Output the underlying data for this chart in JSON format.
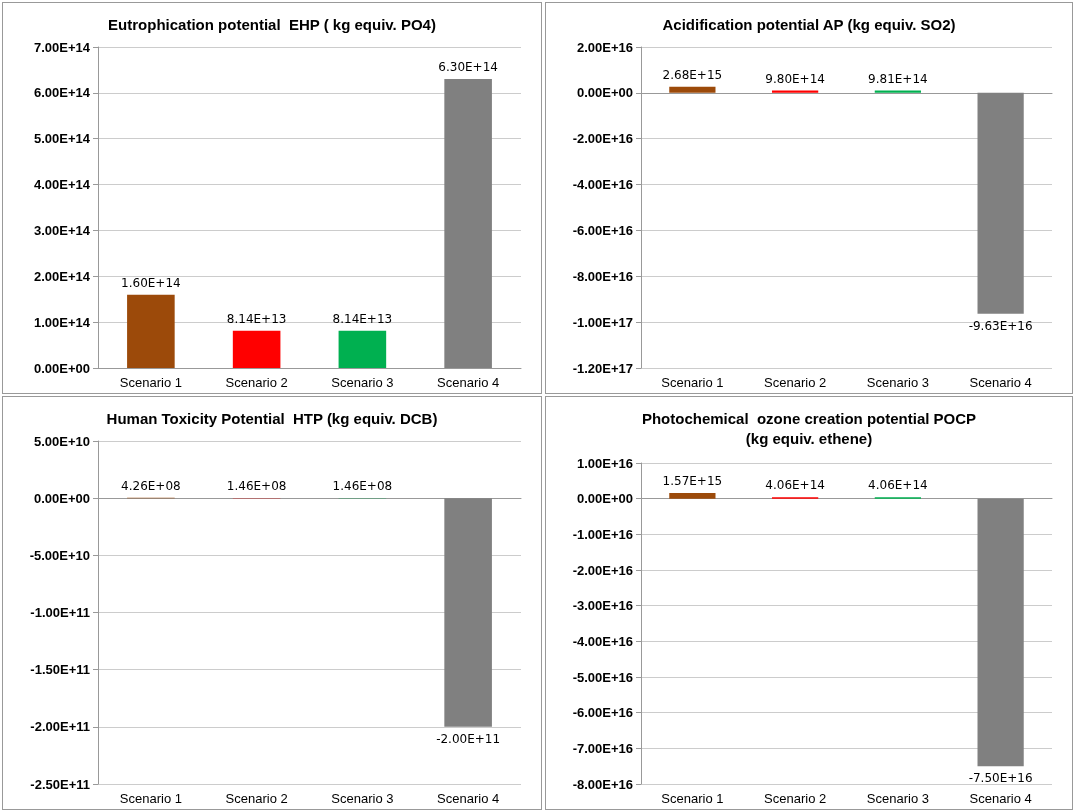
{
  "chart_data": [
    {
      "type": "bar",
      "title": "Eutrophication potential  EHP ( kg equiv. PO4)",
      "categories": [
        "Scenario 1",
        "Scenario 2",
        "Scenario 3",
        "Scenario 4"
      ],
      "values": [
        160000000000000.0,
        81400000000000.0,
        81400000000000.0,
        630000000000000.0
      ],
      "colors": [
        "#9c4a0a",
        "#ff0000",
        "#00b050",
        "#808080"
      ],
      "value_labels": [
        "1.60E+14",
        "8.14E+13",
        "8.14E+13",
        "6.30E+14"
      ],
      "ylim": [
        0,
        700000000000000.0
      ],
      "yticks": [
        {
          "value": 0,
          "label": "0.00E+00"
        },
        {
          "value": 100000000000000.0,
          "label": "1.00E+14"
        },
        {
          "value": 200000000000000.0,
          "label": "2.00E+14"
        },
        {
          "value": 300000000000000.0,
          "label": "3.00E+14"
        },
        {
          "value": 400000000000000.0,
          "label": "4.00E+14"
        },
        {
          "value": 500000000000000.0,
          "label": "5.00E+14"
        },
        {
          "value": 600000000000000.0,
          "label": "6.00E+14"
        },
        {
          "value": 700000000000000.0,
          "label": "7.00E+14"
        }
      ],
      "grid": "y"
    },
    {
      "type": "bar",
      "title": "Acidification potential AP (kg equiv. SO2)",
      "categories": [
        "Scenario 1",
        "Scenario 2",
        "Scenario 3",
        "Scenario 4"
      ],
      "values": [
        2680000000000000.0,
        980000000000000.0,
        981000000000000.0,
        -9.63e+16
      ],
      "colors": [
        "#9c4a0a",
        "#ff0000",
        "#00b050",
        "#808080"
      ],
      "value_labels": [
        "2.68E+15",
        "9.80E+14",
        "9.81E+14",
        "-9.63E+16"
      ],
      "ylim": [
        -1.2e+17,
        2e+16
      ],
      "yticks": [
        {
          "value": -1.2e+17,
          "label": "-1.20E+17"
        },
        {
          "value": -1e+17,
          "label": "-1.00E+17"
        },
        {
          "value": -8e+16,
          "label": "-8.00E+16"
        },
        {
          "value": -6e+16,
          "label": "-6.00E+16"
        },
        {
          "value": -4e+16,
          "label": "-4.00E+16"
        },
        {
          "value": -2e+16,
          "label": "-2.00E+16"
        },
        {
          "value": 0,
          "label": "0.00E+00"
        },
        {
          "value": 2e+16,
          "label": "2.00E+16"
        }
      ],
      "grid": "y"
    },
    {
      "type": "bar",
      "title": "Human Toxicity Potential  HTP (kg equiv. DCB)",
      "categories": [
        "Scenario 1",
        "Scenario 2",
        "Scenario 3",
        "Scenario 4"
      ],
      "values": [
        426000000.0,
        146000000.0,
        146000000.0,
        -200000000000.0
      ],
      "colors": [
        "#9c4a0a",
        "#ff0000",
        "#00b050",
        "#808080"
      ],
      "value_labels": [
        "4.26E+08",
        "1.46E+08",
        "1.46E+08",
        "-2.00E+11"
      ],
      "ylim": [
        -250000000000.0,
        50000000000.0
      ],
      "yticks": [
        {
          "value": -250000000000.0,
          "label": "-2.50E+11"
        },
        {
          "value": -200000000000.0,
          "label": "-2.00E+11"
        },
        {
          "value": -150000000000.0,
          "label": "-1.50E+11"
        },
        {
          "value": -100000000000.0,
          "label": "-1.00E+11"
        },
        {
          "value": -50000000000.0,
          "label": "-5.00E+10"
        },
        {
          "value": 0,
          "label": "0.00E+00"
        },
        {
          "value": 50000000000.0,
          "label": "5.00E+10"
        }
      ],
      "grid": "y"
    },
    {
      "type": "bar",
      "title": "Photochemical  ozone creation potential POCP\n(kg equiv. ethene)",
      "categories": [
        "Scenario 1",
        "Scenario 2",
        "Scenario 3",
        "Scenario 4"
      ],
      "values": [
        1570000000000000.0,
        406000000000000.0,
        406000000000000.0,
        -7.5e+16
      ],
      "colors": [
        "#9c4a0a",
        "#ff0000",
        "#00b050",
        "#808080"
      ],
      "value_labels": [
        "1.57E+15",
        "4.06E+14",
        "4.06E+14",
        "-7.50E+16"
      ],
      "ylim": [
        -8e+16,
        1e+16
      ],
      "yticks": [
        {
          "value": -8e+16,
          "label": "-8.00E+16"
        },
        {
          "value": -7e+16,
          "label": "-7.00E+16"
        },
        {
          "value": -6e+16,
          "label": "-6.00E+16"
        },
        {
          "value": -5e+16,
          "label": "-5.00E+16"
        },
        {
          "value": -4e+16,
          "label": "-4.00E+16"
        },
        {
          "value": -3e+16,
          "label": "-3.00E+16"
        },
        {
          "value": -2e+16,
          "label": "-2.00E+16"
        },
        {
          "value": -1e+16,
          "label": "-1.00E+16"
        },
        {
          "value": 0,
          "label": "0.00E+00"
        },
        {
          "value": 1e+16,
          "label": "1.00E+16"
        }
      ],
      "grid": "y"
    }
  ]
}
